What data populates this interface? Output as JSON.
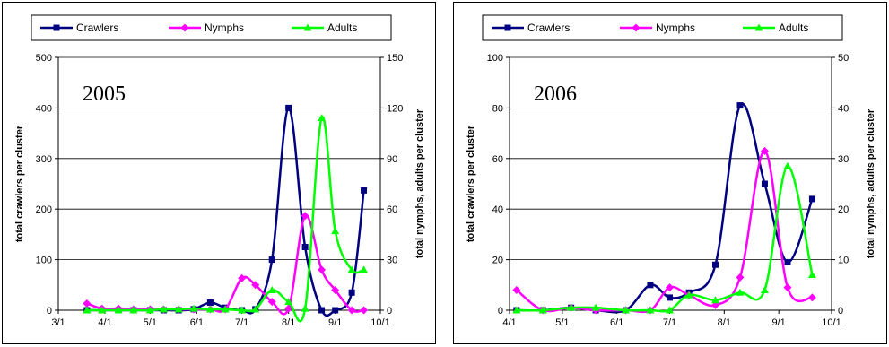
{
  "chart_data": [
    {
      "type": "line",
      "annotation": "2005",
      "legend": {
        "placement": "top"
      },
      "x_axis": {
        "ticks": [
          "3/1",
          "4/1",
          "5/1",
          "6/1",
          "7/1",
          "8/1",
          "9/1",
          "10/1"
        ]
      },
      "y_left": {
        "label": "total crawlers per cluster",
        "range": [
          0,
          500
        ],
        "ticks": [
          "0",
          "100",
          "200",
          "300",
          "400",
          "500"
        ]
      },
      "y_right": {
        "label": "total nymphs, adults per cluster",
        "range": [
          0,
          150
        ],
        "ticks": [
          "0",
          "30",
          "60",
          "90",
          "120",
          "150"
        ]
      },
      "grid": true,
      "series": [
        {
          "name": "Crawlers",
          "axis": "left",
          "color": "#000080",
          "marker": "square",
          "x": [
            "3/20",
            "3/30",
            "4/10",
            "4/20",
            "5/1",
            "5/10",
            "5/20",
            "5/30",
            "6/10",
            "6/20",
            "7/1",
            "7/10",
            "7/21",
            "8/1",
            "8/12",
            "8/23",
            "9/1",
            "9/12",
            "9/20"
          ],
          "values": [
            0,
            0,
            0,
            0,
            0,
            0,
            0,
            2,
            15,
            5,
            0,
            2,
            100,
            400,
            125,
            0,
            0,
            35,
            237
          ]
        },
        {
          "name": "Nymphs",
          "axis": "right",
          "color": "#ff00ff",
          "marker": "diamond",
          "x": [
            "3/20",
            "3/30",
            "4/10",
            "4/20",
            "5/1",
            "5/10",
            "5/20",
            "5/30",
            "6/10",
            "6/20",
            "7/1",
            "7/10",
            "7/21",
            "8/1",
            "8/12",
            "8/23",
            "9/1",
            "9/12",
            "9/20"
          ],
          "values": [
            4,
            1,
            1,
            0.5,
            0.5,
            0.5,
            0.5,
            0.5,
            0.5,
            0.5,
            19,
            15,
            5,
            1,
            56,
            24,
            12,
            0,
            0
          ]
        },
        {
          "name": "Adults",
          "axis": "right",
          "color": "#00ff00",
          "marker": "triangle",
          "x": [
            "3/20",
            "3/30",
            "4/10",
            "4/20",
            "5/1",
            "5/10",
            "5/20",
            "5/30",
            "6/10",
            "6/20",
            "7/1",
            "7/10",
            "7/21",
            "8/1",
            "8/12",
            "8/23",
            "9/1",
            "9/12",
            "9/20"
          ],
          "values": [
            0,
            0,
            0,
            0,
            0,
            0.5,
            0.5,
            1,
            0.5,
            0.5,
            0,
            0.5,
            12,
            5,
            1,
            114,
            47,
            24,
            24
          ]
        }
      ]
    },
    {
      "type": "line",
      "annotation": "2006",
      "legend": {
        "placement": "top"
      },
      "x_axis": {
        "ticks": [
          "4/1",
          "5/1",
          "6/1",
          "7/1",
          "8/1",
          "9/1",
          "10/1"
        ]
      },
      "y_left": {
        "label": "total crawlers per cluster",
        "range": [
          0,
          100
        ],
        "ticks": [
          "0",
          "20",
          "40",
          "60",
          "80",
          "100"
        ]
      },
      "y_right": {
        "label": "total nymphs, adults per cluster",
        "range": [
          0,
          50
        ],
        "ticks": [
          "0",
          "10",
          "20",
          "30",
          "40",
          "50"
        ]
      },
      "grid": true,
      "series": [
        {
          "name": "Crawlers",
          "axis": "left",
          "color": "#000080",
          "marker": "square",
          "x": [
            "4/5",
            "4/20",
            "5/6",
            "5/20",
            "6/6",
            "6/20",
            "7/1",
            "7/12",
            "7/27",
            "8/10",
            "8/24",
            "9/6",
            "9/20"
          ],
          "values": [
            0,
            0,
            1,
            0,
            0,
            10,
            5,
            7,
            18,
            81,
            50,
            19,
            44
          ]
        },
        {
          "name": "Nymphs",
          "axis": "right",
          "color": "#ff00ff",
          "marker": "diamond",
          "x": [
            "4/5",
            "4/20",
            "5/6",
            "5/20",
            "6/6",
            "6/20",
            "7/1",
            "7/12",
            "7/27",
            "8/10",
            "8/24",
            "9/6",
            "9/20"
          ],
          "values": [
            4,
            0,
            0.5,
            0,
            0,
            0,
            4.5,
            3,
            1,
            6.5,
            31.5,
            4.5,
            2.5
          ]
        },
        {
          "name": "Adults",
          "axis": "right",
          "color": "#00ff00",
          "marker": "triangle",
          "x": [
            "4/5",
            "4/20",
            "5/6",
            "5/20",
            "6/6",
            "6/20",
            "7/1",
            "7/12",
            "7/27",
            "8/10",
            "8/24",
            "9/6",
            "9/20"
          ],
          "values": [
            0,
            0,
            0.5,
            0.5,
            0,
            0,
            0,
            3,
            2,
            3.5,
            4,
            28.5,
            7
          ]
        }
      ]
    }
  ]
}
